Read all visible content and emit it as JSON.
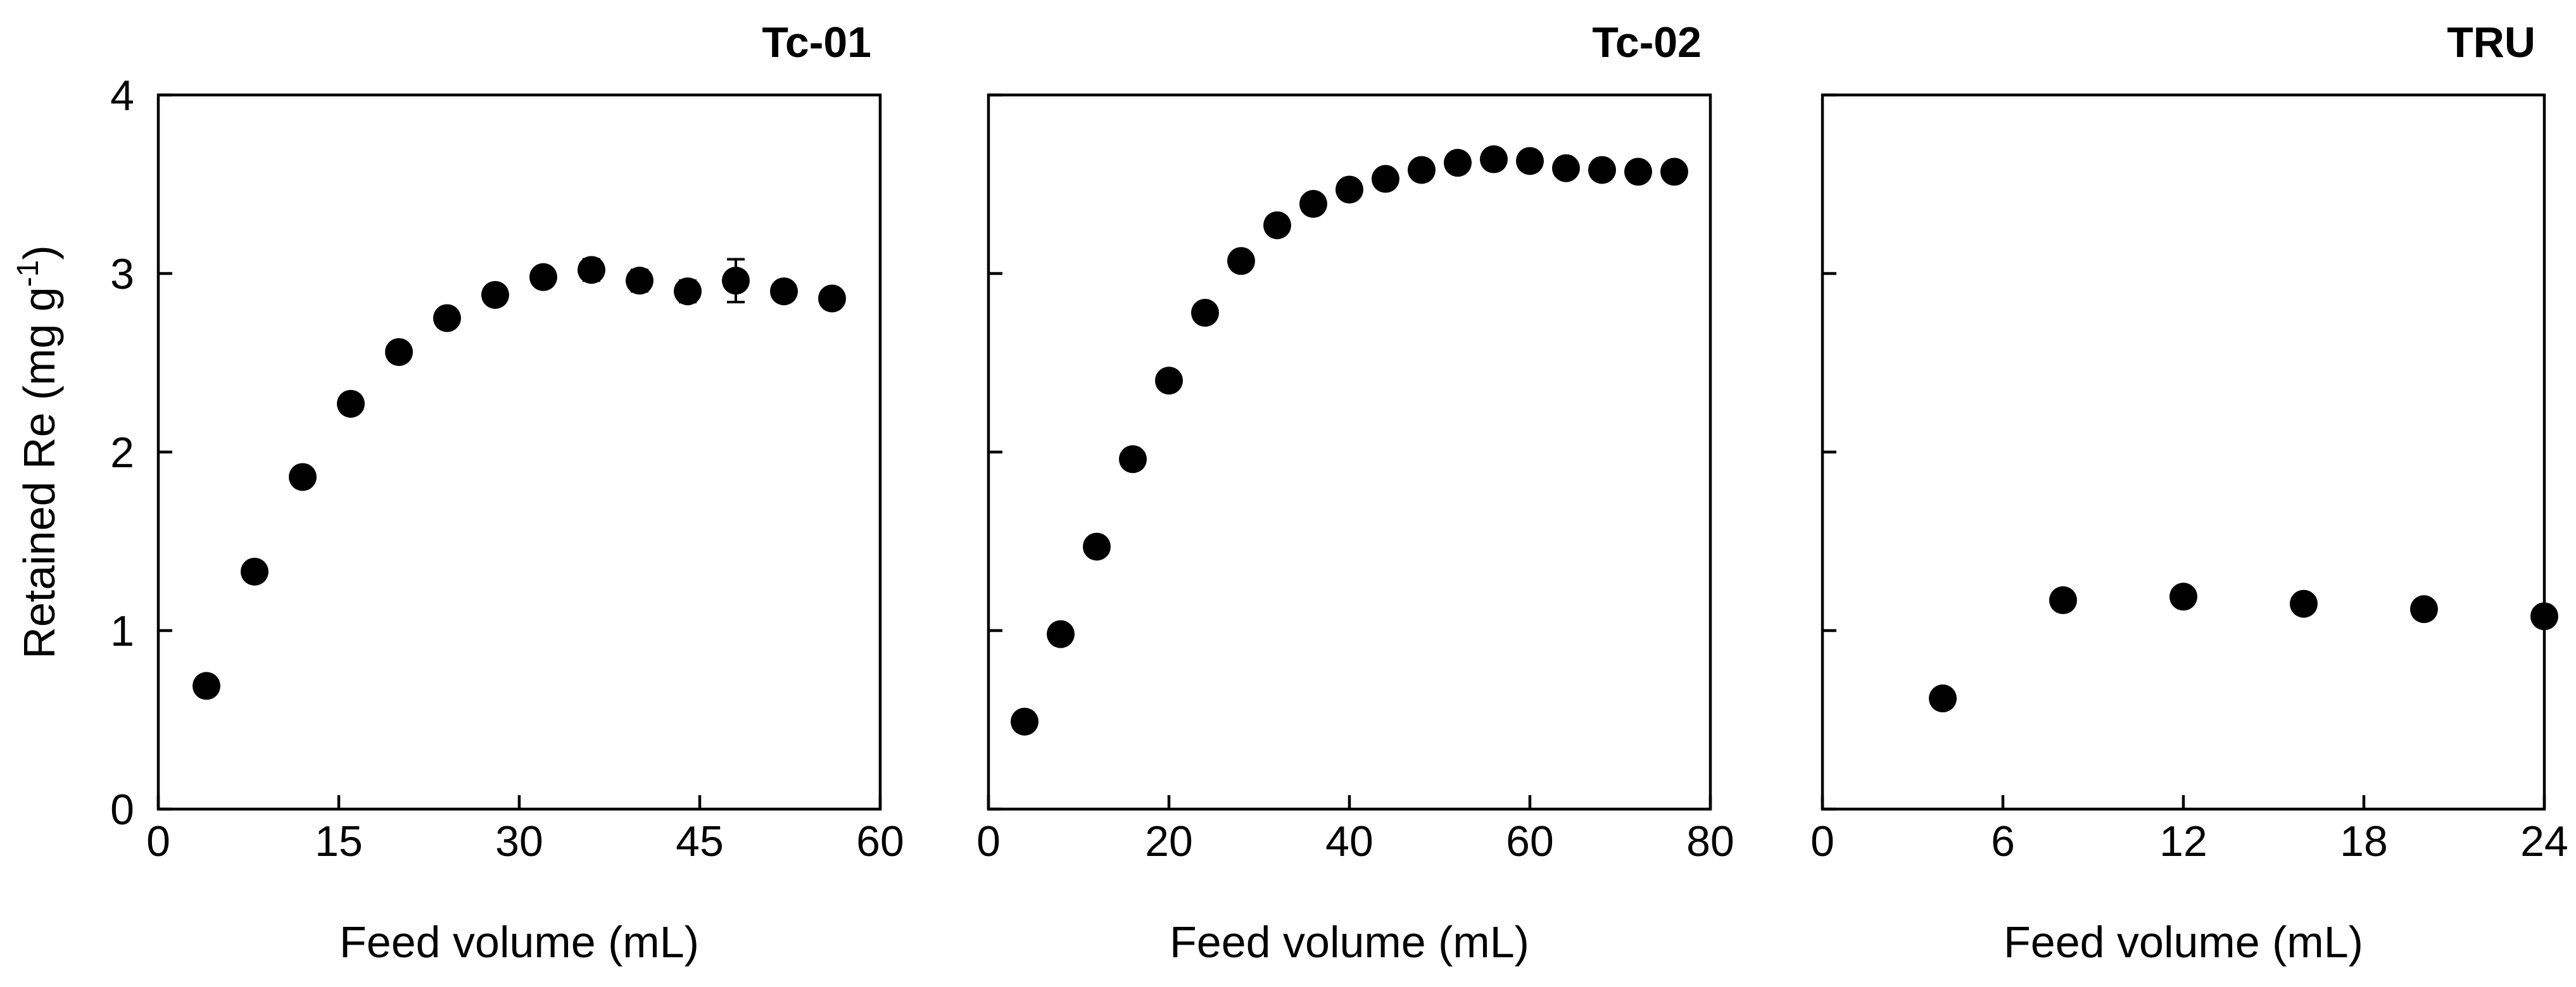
{
  "chart_data": [
    {
      "type": "scatter",
      "title": "Tc-01",
      "xlabel": "Feed volume (mL)",
      "ylabel": "Retained Re (mg g",
      "ylabel_sup": "-1",
      "ylabel_close": ")",
      "xlim": [
        0,
        60
      ],
      "ylim": [
        0,
        4
      ],
      "xticks": [
        0,
        15,
        30,
        45,
        60
      ],
      "yticks": [
        0,
        1,
        2,
        3,
        4
      ],
      "color": "#000000",
      "points": [
        {
          "x": 4,
          "y": 0.69,
          "err": 0
        },
        {
          "x": 8,
          "y": 1.33,
          "err": 0
        },
        {
          "x": 12,
          "y": 1.86,
          "err": 0
        },
        {
          "x": 16,
          "y": 2.27,
          "err": 0
        },
        {
          "x": 20,
          "y": 2.56,
          "err": 0
        },
        {
          "x": 24,
          "y": 2.75,
          "err": 0
        },
        {
          "x": 28,
          "y": 2.88,
          "err": 0
        },
        {
          "x": 32,
          "y": 2.98,
          "err": 0
        },
        {
          "x": 36,
          "y": 3.02,
          "err": 0.06
        },
        {
          "x": 40,
          "y": 2.96,
          "err": 0.06
        },
        {
          "x": 44,
          "y": 2.9,
          "err": 0.06
        },
        {
          "x": 48,
          "y": 2.96,
          "err": 0.12
        },
        {
          "x": 52,
          "y": 2.9,
          "err": 0.05
        },
        {
          "x": 56,
          "y": 2.86,
          "err": 0.05
        }
      ]
    },
    {
      "type": "scatter",
      "title": "Tc-02",
      "xlabel": "Feed volume (mL)",
      "ylabel": "",
      "xlim": [
        0,
        80
      ],
      "ylim": [
        0,
        4
      ],
      "xticks": [
        0,
        20,
        40,
        60,
        80
      ],
      "yticks": [
        0,
        1,
        2,
        3,
        4
      ],
      "color": "#000000",
      "points": [
        {
          "x": 4,
          "y": 0.49,
          "err": 0
        },
        {
          "x": 8,
          "y": 0.98,
          "err": 0
        },
        {
          "x": 12,
          "y": 1.47,
          "err": 0
        },
        {
          "x": 16,
          "y": 1.96,
          "err": 0
        },
        {
          "x": 20,
          "y": 2.4,
          "err": 0
        },
        {
          "x": 24,
          "y": 2.78,
          "err": 0
        },
        {
          "x": 28,
          "y": 3.07,
          "err": 0
        },
        {
          "x": 32,
          "y": 3.27,
          "err": 0
        },
        {
          "x": 36,
          "y": 3.39,
          "err": 0
        },
        {
          "x": 40,
          "y": 3.47,
          "err": 0
        },
        {
          "x": 44,
          "y": 3.53,
          "err": 0
        },
        {
          "x": 48,
          "y": 3.58,
          "err": 0
        },
        {
          "x": 52,
          "y": 3.62,
          "err": 0
        },
        {
          "x": 56,
          "y": 3.64,
          "err": 0
        },
        {
          "x": 60,
          "y": 3.63,
          "err": 0
        },
        {
          "x": 64,
          "y": 3.59,
          "err": 0
        },
        {
          "x": 68,
          "y": 3.58,
          "err": 0
        },
        {
          "x": 72,
          "y": 3.57,
          "err": 0
        },
        {
          "x": 76,
          "y": 3.57,
          "err": 0
        }
      ]
    },
    {
      "type": "scatter",
      "title": "TRU",
      "xlabel": "Feed volume (mL)",
      "ylabel": "",
      "xlim": [
        0,
        24
      ],
      "ylim": [
        0,
        4
      ],
      "xticks": [
        0,
        6,
        12,
        18,
        24
      ],
      "yticks": [
        0,
        1,
        2,
        3,
        4
      ],
      "color": "#000000",
      "points": [
        {
          "x": 4,
          "y": 0.62,
          "err": 0
        },
        {
          "x": 8,
          "y": 1.17,
          "err": 0
        },
        {
          "x": 12,
          "y": 1.19,
          "err": 0
        },
        {
          "x": 16,
          "y": 1.15,
          "err": 0
        },
        {
          "x": 20,
          "y": 1.12,
          "err": 0
        },
        {
          "x": 24,
          "y": 1.08,
          "err": 0
        }
      ]
    }
  ]
}
